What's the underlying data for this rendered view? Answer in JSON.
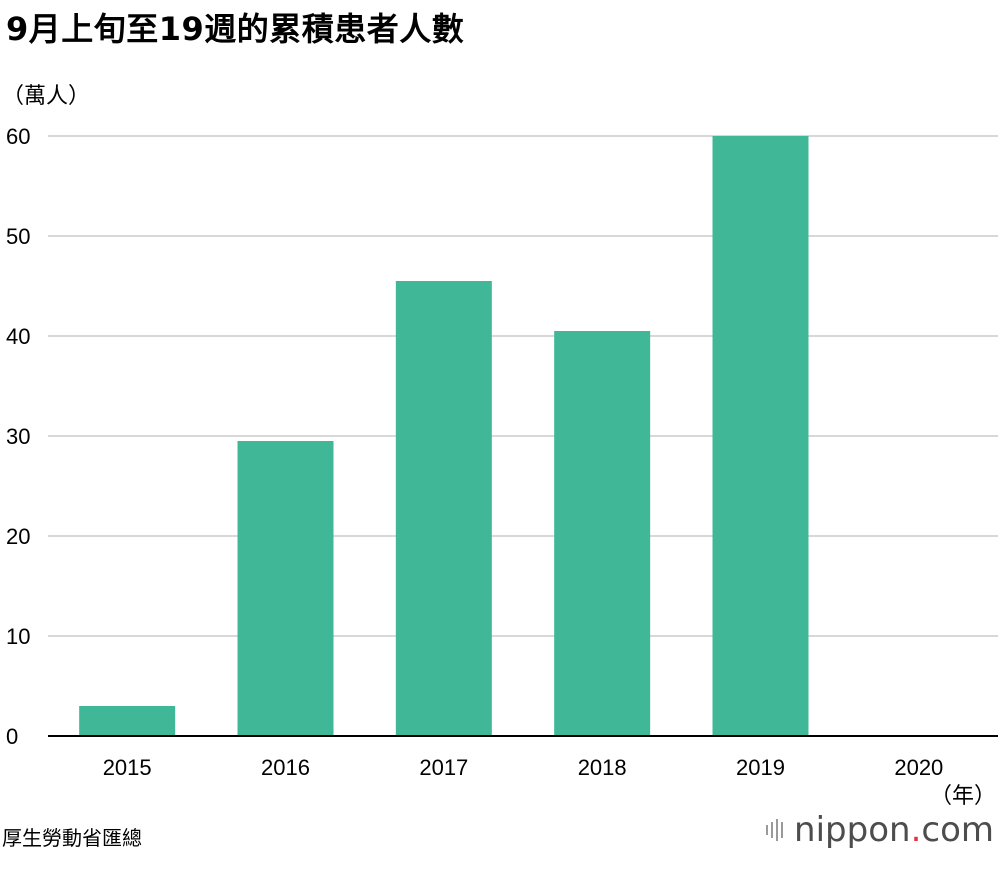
{
  "chart_data": {
    "type": "bar",
    "title": "9月上旬至19週的累積患者人數",
    "ylabel": "（萬人）",
    "xlabel": "（年）",
    "categories": [
      "2015",
      "2016",
      "2017",
      "2018",
      "2019",
      "2020"
    ],
    "values": [
      3,
      29.5,
      45.5,
      40.5,
      60,
      0
    ],
    "ylim": [
      0,
      60
    ],
    "yticks": [
      0,
      10,
      20,
      30,
      40,
      50,
      60
    ],
    "grid": true,
    "bar_color": "#40b898",
    "grid_color": "#cccccc"
  },
  "footer": {
    "source": "厚生勞動省匯總",
    "brand_main": "nippon",
    "brand_dot": ".",
    "brand_suffix": "com"
  }
}
